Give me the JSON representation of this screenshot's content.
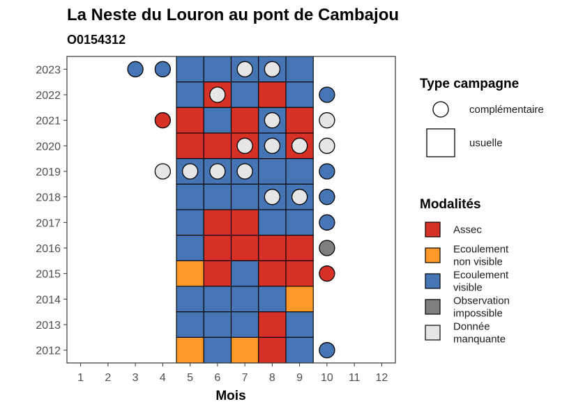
{
  "chart_data": {
    "type": "heatmap",
    "title": "La Neste du Louron au pont de Cambajou",
    "subtitle": "O0154312",
    "xlabel": "Mois",
    "ylabel": "",
    "x_ticks": [
      1,
      2,
      3,
      4,
      5,
      6,
      7,
      8,
      9,
      10,
      11,
      12
    ],
    "y_ticks": [
      2012,
      2013,
      2014,
      2015,
      2016,
      2017,
      2018,
      2019,
      2020,
      2021,
      2022,
      2023
    ],
    "xlim": [
      0.5,
      12.5
    ],
    "ylim": [
      2011.5,
      2023.5
    ],
    "grid": false,
    "legend_position": "right",
    "colors": {
      "Assec": "#d73027",
      "Ecoulement non visible": "#fe9929",
      "Ecoulement visible": "#4575b4",
      "Observation impossible": "#7f7f7f",
      "Donnée manquante": "#e6e6e6"
    },
    "shape_legend": {
      "title": "Type campagne",
      "items": [
        {
          "label": "complémentaire",
          "shape": "circle"
        },
        {
          "label": "usuelle",
          "shape": "square"
        }
      ]
    },
    "color_legend": {
      "title": "Modalités",
      "items": [
        {
          "key": "Assec",
          "lines": [
            "Assec"
          ]
        },
        {
          "key": "Ecoulement non visible",
          "lines": [
            "Ecoulement",
            "non visible"
          ]
        },
        {
          "key": "Ecoulement visible",
          "lines": [
            "Ecoulement",
            "visible"
          ]
        },
        {
          "key": "Observation impossible",
          "lines": [
            "Observation",
            "impossible"
          ]
        },
        {
          "key": "Donnée manquante",
          "lines": [
            "Donnée",
            "manquante"
          ]
        }
      ]
    },
    "usuelle": [
      {
        "year": 2023,
        "months": [
          5,
          6,
          7,
          8,
          9
        ],
        "values": [
          "Ecoulement visible",
          "Ecoulement visible",
          "Ecoulement visible",
          "Ecoulement visible",
          "Ecoulement visible"
        ]
      },
      {
        "year": 2022,
        "months": [
          5,
          6,
          7,
          8,
          9
        ],
        "values": [
          "Ecoulement visible",
          "Assec",
          "Ecoulement visible",
          "Assec",
          "Ecoulement visible"
        ]
      },
      {
        "year": 2021,
        "months": [
          5,
          6,
          7,
          8,
          9
        ],
        "values": [
          "Assec",
          "Ecoulement visible",
          "Assec",
          "Ecoulement visible",
          "Assec"
        ]
      },
      {
        "year": 2020,
        "months": [
          5,
          6,
          7,
          8,
          9
        ],
        "values": [
          "Assec",
          "Assec",
          "Assec",
          "Ecoulement visible",
          "Assec"
        ]
      },
      {
        "year": 2019,
        "months": [
          5,
          6,
          7,
          8,
          9
        ],
        "values": [
          "Ecoulement visible",
          "Ecoulement visible",
          "Ecoulement visible",
          "Ecoulement visible",
          "Ecoulement visible"
        ]
      },
      {
        "year": 2018,
        "months": [
          5,
          6,
          7,
          8,
          9
        ],
        "values": [
          "Ecoulement visible",
          "Ecoulement visible",
          "Ecoulement visible",
          "Ecoulement visible",
          "Ecoulement visible"
        ]
      },
      {
        "year": 2017,
        "months": [
          5,
          6,
          7,
          8,
          9
        ],
        "values": [
          "Ecoulement visible",
          "Assec",
          "Assec",
          "Ecoulement visible",
          "Ecoulement visible"
        ]
      },
      {
        "year": 2016,
        "months": [
          5,
          6,
          7,
          8,
          9
        ],
        "values": [
          "Ecoulement visible",
          "Assec",
          "Assec",
          "Assec",
          "Assec"
        ]
      },
      {
        "year": 2015,
        "months": [
          5,
          6,
          7,
          8,
          9
        ],
        "values": [
          "Ecoulement non visible",
          "Assec",
          "Ecoulement visible",
          "Assec",
          "Assec"
        ]
      },
      {
        "year": 2014,
        "months": [
          5,
          6,
          7,
          8,
          9
        ],
        "values": [
          "Ecoulement visible",
          "Ecoulement visible",
          "Ecoulement visible",
          "Ecoulement visible",
          "Ecoulement non visible"
        ]
      },
      {
        "year": 2013,
        "months": [
          5,
          6,
          7,
          8,
          9
        ],
        "values": [
          "Ecoulement visible",
          "Ecoulement visible",
          "Ecoulement visible",
          "Assec",
          "Ecoulement visible"
        ]
      },
      {
        "year": 2012,
        "months": [
          5,
          6,
          7,
          8,
          9
        ],
        "values": [
          "Ecoulement non visible",
          "Ecoulement visible",
          "Ecoulement non visible",
          "Assec",
          "Ecoulement visible"
        ]
      }
    ],
    "complementaire": [
      {
        "year": 2023,
        "month": 3,
        "value": "Ecoulement visible"
      },
      {
        "year": 2023,
        "month": 4,
        "value": "Ecoulement visible"
      },
      {
        "year": 2023,
        "month": 7,
        "value": "Donnée manquante"
      },
      {
        "year": 2023,
        "month": 8,
        "value": "Donnée manquante"
      },
      {
        "year": 2022,
        "month": 6,
        "value": "Donnée manquante"
      },
      {
        "year": 2022,
        "month": 10,
        "value": "Ecoulement visible"
      },
      {
        "year": 2021,
        "month": 4,
        "value": "Assec"
      },
      {
        "year": 2021,
        "month": 8,
        "value": "Donnée manquante"
      },
      {
        "year": 2021,
        "month": 10,
        "value": "Donnée manquante"
      },
      {
        "year": 2020,
        "month": 7,
        "value": "Donnée manquante"
      },
      {
        "year": 2020,
        "month": 8,
        "value": "Donnée manquante"
      },
      {
        "year": 2020,
        "month": 9,
        "value": "Donnée manquante"
      },
      {
        "year": 2020,
        "month": 10,
        "value": "Donnée manquante"
      },
      {
        "year": 2019,
        "month": 4,
        "value": "Donnée manquante"
      },
      {
        "year": 2019,
        "month": 5,
        "value": "Donnée manquante"
      },
      {
        "year": 2019,
        "month": 6,
        "value": "Donnée manquante"
      },
      {
        "year": 2019,
        "month": 7,
        "value": "Donnée manquante"
      },
      {
        "year": 2019,
        "month": 10,
        "value": "Ecoulement visible"
      },
      {
        "year": 2018,
        "month": 8,
        "value": "Donnée manquante"
      },
      {
        "year": 2018,
        "month": 9,
        "value": "Donnée manquante"
      },
      {
        "year": 2018,
        "month": 10,
        "value": "Ecoulement visible"
      },
      {
        "year": 2017,
        "month": 10,
        "value": "Ecoulement visible"
      },
      {
        "year": 2016,
        "month": 10,
        "value": "Observation impossible"
      },
      {
        "year": 2015,
        "month": 10,
        "value": "Assec"
      },
      {
        "year": 2012,
        "month": 10,
        "value": "Ecoulement visible"
      }
    ]
  }
}
